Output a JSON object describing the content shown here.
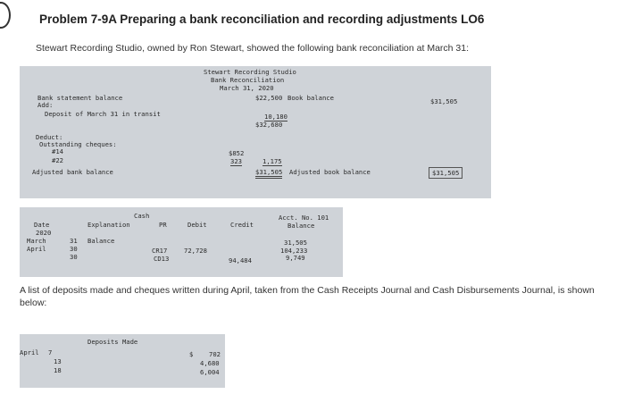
{
  "title": "Problem 7-9A Preparing a bank reconciliation and recording adjustments LO6",
  "intro": "Stewart Recording Studio, owned by Ron Stewart, showed the following bank reconciliation at March 31:",
  "recon": {
    "head1": "Stewart Recording Studio",
    "head2": "Bank Reconciliation",
    "head3": "March 31, 2020",
    "bank_balance_label": "Bank statement balance",
    "bank_balance": "$22,500",
    "book_balance_label": "Book balance",
    "book_balance": "$31,505",
    "add_label": "Add:",
    "deposit_label": "Deposit of March 31 in transit",
    "deposit_amount": "10,180",
    "subtotal": "$32,680",
    "deduct_label": "Deduct:",
    "outstanding_label": "Outstanding cheques:",
    "cheques": [
      {
        "number": "#14",
        "amount": "$852"
      },
      {
        "number": "#22",
        "amount": "323"
      }
    ],
    "cheques_total": "1,175",
    "adjusted_bank_label": "Adjusted bank balance",
    "adjusted_bank": "$31,505",
    "adjusted_book_label": "Adjusted book balance",
    "adjusted_book": "$31,505"
  },
  "ledger": {
    "account": "Cash",
    "acct_no": "Acct. No. 101",
    "columns": {
      "date": "Date",
      "explanation": "Explanation",
      "pr": "PR",
      "debit": "Debit",
      "credit": "Credit",
      "balance": "Balance"
    },
    "year": "2020",
    "rows": [
      {
        "month": "March",
        "day": "31",
        "explanation": "Balance",
        "pr": "",
        "debit": "",
        "credit": "",
        "balance": "31,505"
      },
      {
        "month": "April",
        "day": "30",
        "explanation": "",
        "pr": "CR17",
        "debit": "72,728",
        "credit": "",
        "balance": "104,233"
      },
      {
        "month": "",
        "day": "30",
        "explanation": "",
        "pr": "CD13",
        "debit": "",
        "credit": "94,484",
        "balance": "9,749"
      }
    ]
  },
  "question": "A list of deposits made and cheques written during April, taken from the Cash Receipts Journal and Cash Disbursements Journal, is shown below:",
  "deposits": {
    "heading": "Deposits Made",
    "month": "April",
    "currency": "$",
    "rows": [
      {
        "day": "7",
        "amount": "702"
      },
      {
        "day": "13",
        "amount": "4,680"
      },
      {
        "day": "18",
        "amount": "6,004"
      }
    ]
  }
}
